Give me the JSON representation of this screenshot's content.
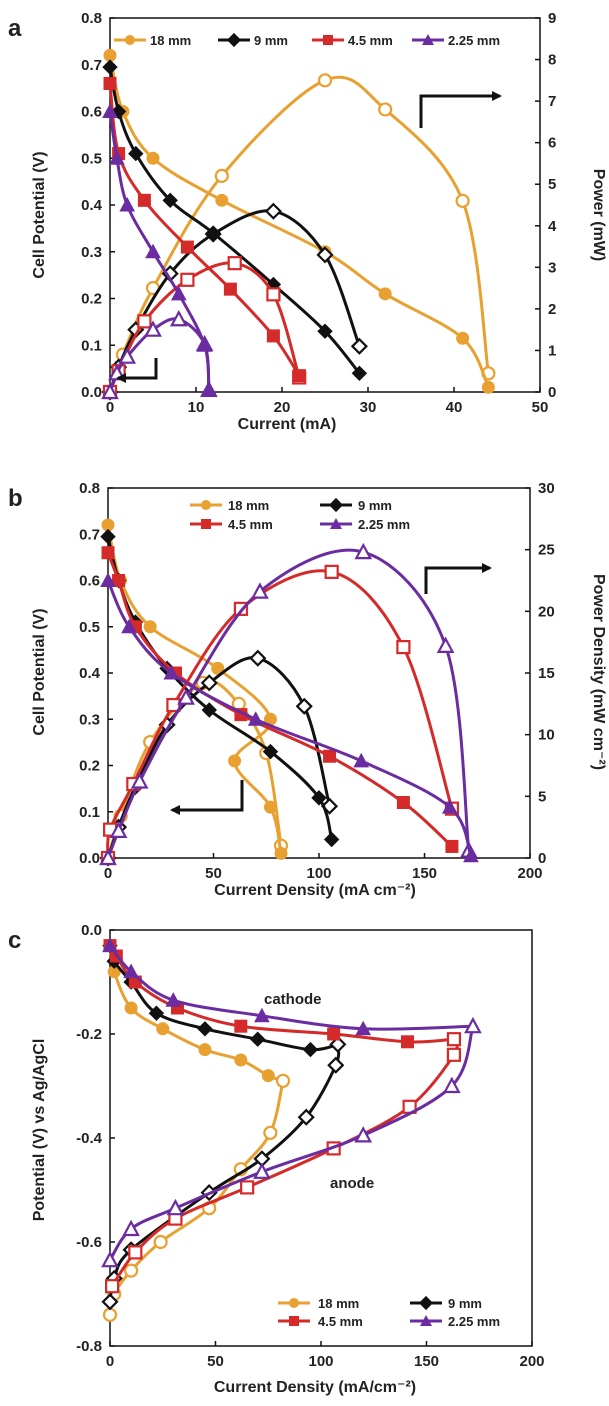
{
  "chart_data": [
    {
      "type": "line",
      "panel_label": "a",
      "xlabel": "Current (mA)",
      "ylabel": "Cell Potential (V)",
      "y2label": "Power (mW)",
      "xlim": [
        0,
        50
      ],
      "ylim": [
        0,
        0.8
      ],
      "y2lim": [
        0,
        9
      ],
      "xticks": [
        "0",
        "10",
        "20",
        "30",
        "40",
        "50"
      ],
      "yticks": [
        "0.0",
        "0.1",
        "0.2",
        "0.3",
        "0.4",
        "0.5",
        "0.6",
        "0.7",
        "0.8"
      ],
      "y2ticks": [
        "0",
        "1",
        "2",
        "3",
        "4",
        "5",
        "6",
        "7",
        "8",
        "9"
      ],
      "legend_position": "top",
      "series": [
        {
          "name": "18 mm",
          "color": "#E8A030",
          "marker": "circle",
          "potential": [
            [
              0,
              0.72
            ],
            [
              1.5,
              0.6
            ],
            [
              5,
              0.5
            ],
            [
              13,
              0.41
            ],
            [
              25,
              0.3
            ],
            [
              32,
              0.21
            ],
            [
              41,
              0.115
            ],
            [
              44,
              0.01
            ]
          ],
          "power": [
            [
              0,
              0
            ],
            [
              1.5,
              0.9
            ],
            [
              5,
              2.5
            ],
            [
              13,
              5.2
            ],
            [
              25,
              7.5
            ],
            [
              32,
              6.8
            ],
            [
              41,
              4.6
            ],
            [
              44,
              0.45
            ]
          ]
        },
        {
          "name": "9 mm",
          "color": "#111111",
          "marker": "diamond",
          "potential": [
            [
              0,
              0.695
            ],
            [
              1,
              0.6
            ],
            [
              3,
              0.51
            ],
            [
              7,
              0.41
            ],
            [
              12,
              0.34
            ],
            [
              19,
              0.23
            ],
            [
              25,
              0.13
            ],
            [
              29,
              0.04
            ]
          ],
          "power": [
            [
              0,
              0
            ],
            [
              1,
              0.6
            ],
            [
              3,
              1.5
            ],
            [
              7,
              2.85
            ],
            [
              12,
              3.8
            ],
            [
              19,
              4.35
            ],
            [
              25,
              3.3
            ],
            [
              29,
              1.1
            ]
          ]
        },
        {
          "name": "4.5 mm",
          "color": "#D42A2A",
          "marker": "square",
          "potential": [
            [
              0,
              0.66
            ],
            [
              1,
              0.51
            ],
            [
              4,
              0.41
            ],
            [
              9,
              0.31
            ],
            [
              14,
              0.22
            ],
            [
              19,
              0.12
            ],
            [
              22,
              0.035
            ]
          ],
          "power": [
            [
              0,
              0
            ],
            [
              1,
              0.5
            ],
            [
              4,
              1.7
            ],
            [
              9,
              2.7
            ],
            [
              14.5,
              3.1
            ],
            [
              19,
              2.35
            ],
            [
              22,
              0.35
            ]
          ]
        },
        {
          "name": "2.25 mm",
          "color": "#6A2CA0",
          "marker": "triangle",
          "potential": [
            [
              0,
              0.6
            ],
            [
              0.8,
              0.5
            ],
            [
              2,
              0.4
            ],
            [
              5,
              0.3
            ],
            [
              8,
              0.21
            ],
            [
              11,
              0.1
            ],
            [
              11.5,
              0.005
            ]
          ],
          "power": [
            [
              0,
              0
            ],
            [
              0.8,
              0.45
            ],
            [
              2,
              0.85
            ],
            [
              5,
              1.5
            ],
            [
              8,
              1.75
            ],
            [
              11,
              1.15
            ],
            [
              11.5,
              0.05
            ]
          ]
        }
      ],
      "annotations": []
    },
    {
      "type": "line",
      "panel_label": "b",
      "xlabel": "Current Density (mA cm⁻²)",
      "ylabel": "Cell Potential (V)",
      "y2label": "Power Density (mW cm⁻²)",
      "xlim": [
        0,
        200
      ],
      "ylim": [
        0,
        0.8
      ],
      "y2lim": [
        0,
        30
      ],
      "xticks": [
        "0",
        "50",
        "100",
        "150",
        "200"
      ],
      "yticks": [
        "0.0",
        "0.1",
        "0.2",
        "0.3",
        "0.4",
        "0.5",
        "0.6",
        "0.7",
        "0.8"
      ],
      "y2ticks": [
        "0",
        "5",
        "10",
        "15",
        "20",
        "25",
        "30"
      ],
      "legend_position": "top",
      "series": [
        {
          "name": "18 mm",
          "color": "#E8A030",
          "marker": "circle",
          "potential": [
            [
              0,
              0.72
            ],
            [
              6,
              0.6
            ],
            [
              20,
              0.5
            ],
            [
              52,
              0.41
            ],
            [
              77,
              0.3
            ],
            [
              60,
              0.21
            ],
            [
              77,
              0.11
            ],
            [
              82,
              0.01
            ]
          ],
          "power": [
            [
              0,
              0
            ],
            [
              6,
              3.4
            ],
            [
              20,
              9.4
            ],
            [
              45,
              14.2
            ],
            [
              62,
              12.5
            ],
            [
              75,
              8.5
            ],
            [
              82,
              1.0
            ]
          ]
        },
        {
          "name": "9 mm",
          "color": "#111111",
          "marker": "diamond",
          "potential": [
            [
              0,
              0.695
            ],
            [
              5,
              0.6
            ],
            [
              13,
              0.51
            ],
            [
              28,
              0.41
            ],
            [
              48,
              0.32
            ],
            [
              77,
              0.23
            ],
            [
              100,
              0.13
            ],
            [
              106,
              0.04
            ]
          ],
          "power": [
            [
              0,
              0
            ],
            [
              5,
              2.5
            ],
            [
              13,
              5.8
            ],
            [
              28,
              10.8
            ],
            [
              48,
              14.2
            ],
            [
              71,
              16.2
            ],
            [
              93,
              12.3
            ],
            [
              105,
              4.2
            ]
          ]
        },
        {
          "name": "4.5 mm",
          "color": "#D42A2A",
          "marker": "square",
          "potential": [
            [
              0,
              0.66
            ],
            [
              5,
              0.6
            ],
            [
              13,
              0.5
            ],
            [
              32,
              0.4
            ],
            [
              63,
              0.31
            ],
            [
              105,
              0.22
            ],
            [
              140,
              0.12
            ],
            [
              163,
              0.025
            ]
          ],
          "power": [
            [
              0,
              0
            ],
            [
              1,
              2.3
            ],
            [
              12,
              6.0
            ],
            [
              31,
              12.4
            ],
            [
              63,
              20.2
            ],
            [
              106,
              23.2
            ],
            [
              140,
              17.1
            ],
            [
              163,
              4.0
            ]
          ]
        },
        {
          "name": "2.25 mm",
          "color": "#6A2CA0",
          "marker": "triangle",
          "potential": [
            [
              0,
              0.6
            ],
            [
              10,
              0.5
            ],
            [
              30,
              0.4
            ],
            [
              70,
              0.3
            ],
            [
              120,
              0.21
            ],
            [
              162,
              0.11
            ],
            [
              172,
              0.005
            ]
          ],
          "power": [
            [
              0,
              0
            ],
            [
              5,
              2.2
            ],
            [
              15,
              6.2
            ],
            [
              37,
              13.0
            ],
            [
              72,
              21.6
            ],
            [
              121,
              24.8
            ],
            [
              160,
              17.2
            ],
            [
              171,
              0.6
            ]
          ]
        }
      ],
      "annotations": []
    },
    {
      "type": "line",
      "panel_label": "c",
      "xlabel": "Current Density (mA/cm⁻²)",
      "ylabel": "Potential (V) vs Ag/AgCl",
      "xlim": [
        0,
        200
      ],
      "ylim": [
        -0.8,
        0.0
      ],
      "xticks": [
        "0",
        "50",
        "100",
        "150",
        "200"
      ],
      "yticks": [
        "0.0",
        "-0.2",
        "-0.4",
        "-0.6",
        "-0.8"
      ],
      "legend_position": "bottom-right",
      "series": [
        {
          "name": "18 mm",
          "color": "#E8A030",
          "marker": "circle",
          "cathode": [
            [
              0,
              -0.03
            ],
            [
              2,
              -0.08
            ],
            [
              10,
              -0.15
            ],
            [
              25,
              -0.19
            ],
            [
              45,
              -0.23
            ],
            [
              62,
              -0.25
            ],
            [
              75,
              -0.28
            ],
            [
              82,
              -0.29
            ]
          ],
          "anode": [
            [
              82,
              -0.29
            ],
            [
              76,
              -0.39
            ],
            [
              62,
              -0.46
            ],
            [
              47,
              -0.535
            ],
            [
              24,
              -0.6
            ],
            [
              10,
              -0.655
            ],
            [
              2,
              -0.7
            ],
            [
              0,
              -0.74
            ]
          ]
        },
        {
          "name": "9 mm",
          "color": "#111111",
          "marker": "diamond",
          "cathode": [
            [
              0,
              -0.03
            ],
            [
              2,
              -0.06
            ],
            [
              10,
              -0.1
            ],
            [
              22,
              -0.16
            ],
            [
              45,
              -0.19
            ],
            [
              70,
              -0.21
            ],
            [
              95,
              -0.23
            ],
            [
              108,
              -0.22
            ]
          ],
          "anode": [
            [
              108,
              -0.22
            ],
            [
              107,
              -0.26
            ],
            [
              93,
              -0.36
            ],
            [
              72,
              -0.44
            ],
            [
              47,
              -0.505
            ],
            [
              10,
              -0.615
            ],
            [
              2,
              -0.67
            ],
            [
              0,
              -0.715
            ]
          ]
        },
        {
          "name": "4.5 mm",
          "color": "#D42A2A",
          "marker": "square",
          "cathode": [
            [
              0,
              -0.03
            ],
            [
              3,
              -0.05
            ],
            [
              12,
              -0.1
            ],
            [
              32,
              -0.15
            ],
            [
              62,
              -0.185
            ],
            [
              106,
              -0.2
            ],
            [
              141,
              -0.215
            ],
            [
              163,
              -0.21
            ]
          ],
          "anode": [
            [
              163,
              -0.21
            ],
            [
              163,
              -0.24
            ],
            [
              142,
              -0.34
            ],
            [
              106,
              -0.42
            ],
            [
              65,
              -0.495
            ],
            [
              31,
              -0.555
            ],
            [
              12,
              -0.62
            ],
            [
              1,
              -0.685
            ]
          ]
        },
        {
          "name": "2.25 mm",
          "color": "#6A2CA0",
          "marker": "triangle",
          "cathode": [
            [
              0,
              -0.03
            ],
            [
              10,
              -0.08
            ],
            [
              30,
              -0.135
            ],
            [
              72,
              -0.165
            ],
            [
              120,
              -0.19
            ],
            [
              172,
              -0.185
            ]
          ],
          "anode": [
            [
              172,
              -0.185
            ],
            [
              162,
              -0.3
            ],
            [
              120,
              -0.395
            ],
            [
              72,
              -0.465
            ],
            [
              31,
              -0.535
            ],
            [
              10,
              -0.575
            ],
            [
              0,
              -0.635
            ]
          ]
        }
      ],
      "annotations": [
        "cathode",
        "anode"
      ]
    }
  ]
}
